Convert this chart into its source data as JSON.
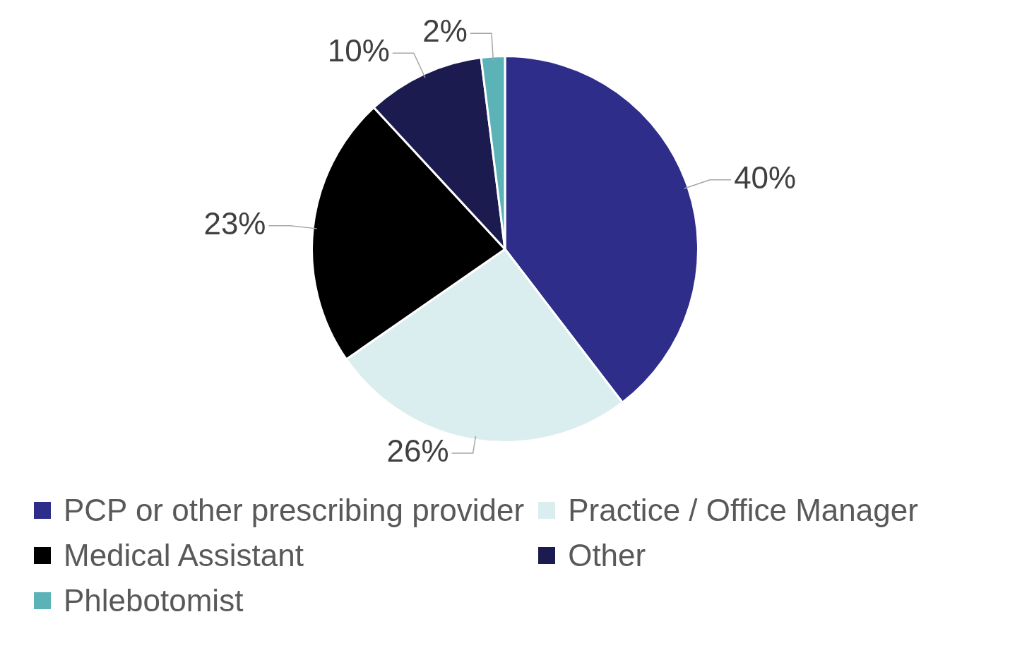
{
  "chart_data": {
    "type": "pie",
    "categories": [
      "PCP or other prescribing provider",
      "Practice / Office Manager",
      "Medical Assistant",
      "Other",
      "Phlebotomist"
    ],
    "values": [
      40,
      26,
      23,
      10,
      2
    ],
    "colors": [
      "#2e2e8a",
      "#daeef0",
      "#000000",
      "#1c1b50",
      "#5bb3b8"
    ],
    "value_labels": [
      "40%",
      "26%",
      "23%",
      "10%",
      "2%"
    ],
    "legend": "bottom"
  }
}
